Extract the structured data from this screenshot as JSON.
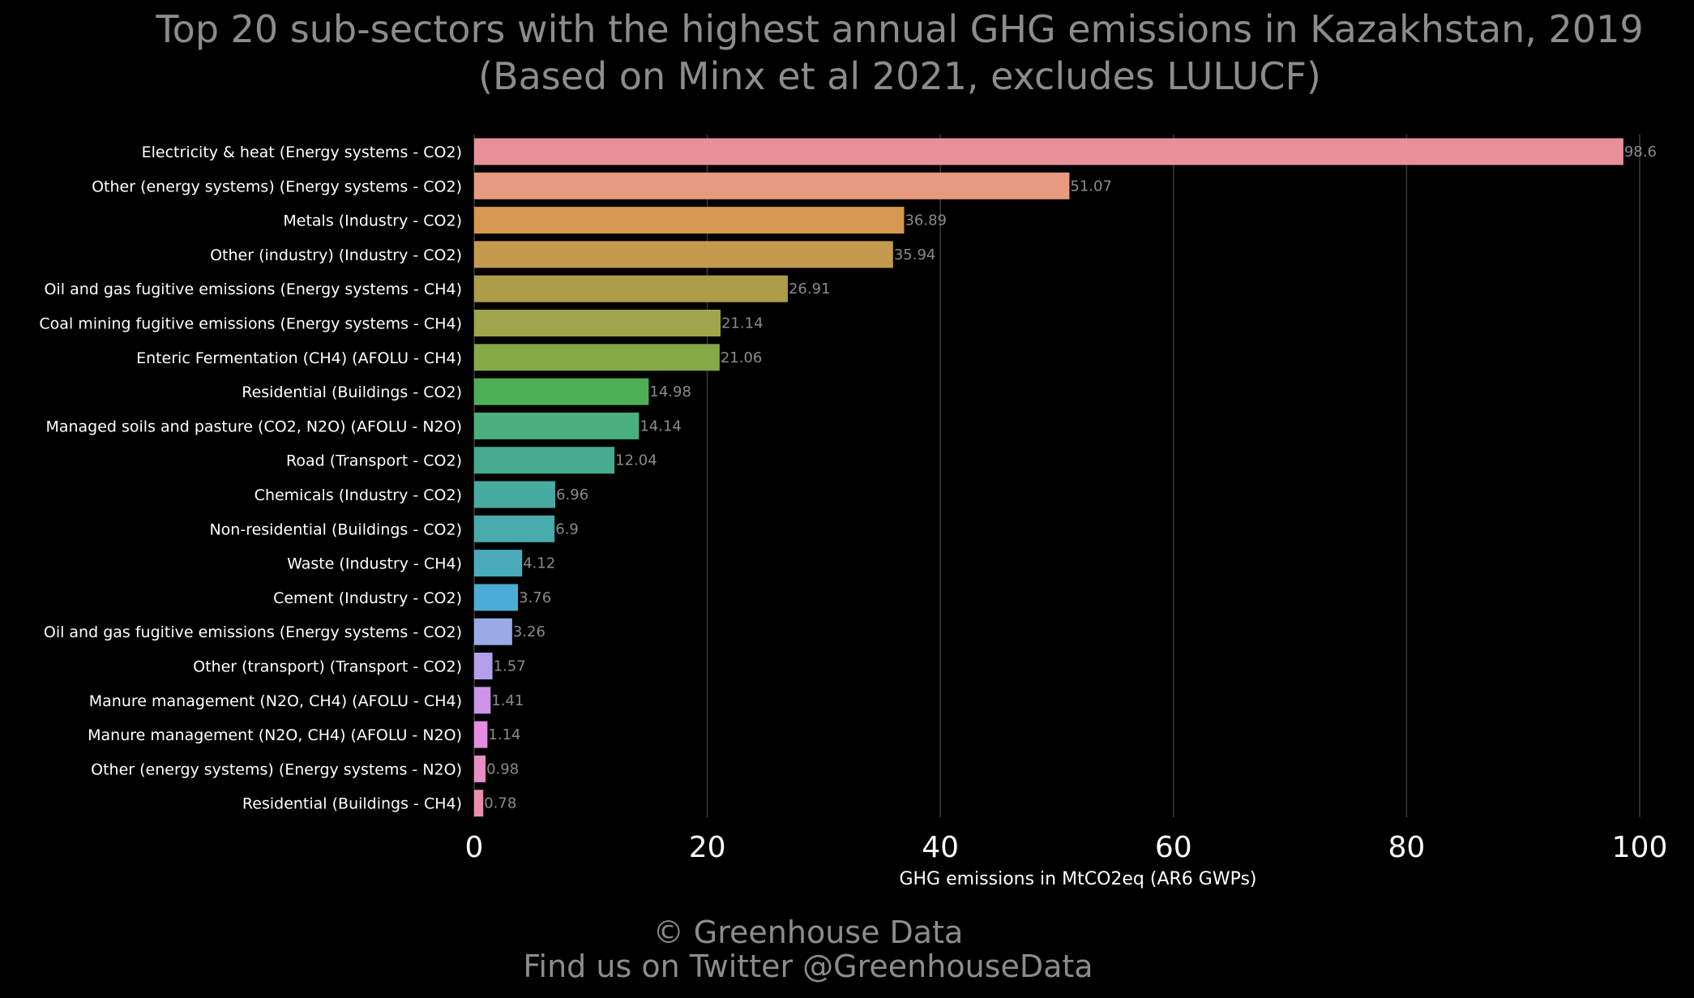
{
  "chart_data": {
    "type": "bar",
    "orientation": "horizontal",
    "title": "Top 20 sub-sectors with the highest annual GHG emissions in Kazakhstan, 2019",
    "subtitle": "(Based on Minx et al 2021, excludes LULUCF)",
    "xlabel": "GHG emissions in MtCO2eq (AR6 GWPs)",
    "ylabel": "",
    "xlim": [
      0,
      100
    ],
    "xticks": [
      0,
      20,
      40,
      60,
      80,
      100
    ],
    "grid": "vertical",
    "categories": [
      "Electricity & heat (Energy systems - CO2)",
      "Other (energy systems) (Energy systems - CO2)",
      "Metals (Industry - CO2)",
      "Other (industry) (Industry - CO2)",
      "Oil and gas fugitive emissions (Energy systems - CH4)",
      "Coal mining fugitive emissions (Energy systems - CH4)",
      "Enteric Fermentation (CH4) (AFOLU - CH4)",
      "Residential (Buildings - CO2)",
      "Managed soils and pasture (CO2, N2O) (AFOLU - N2O)",
      "Road (Transport - CO2)",
      "Chemicals (Industry - CO2)",
      "Non-residential (Buildings - CO2)",
      "Waste (Industry - CH4)",
      "Cement (Industry - CO2)",
      "Oil and gas fugitive emissions (Energy systems - CO2)",
      "Other (transport) (Transport - CO2)",
      "Manure management (N2O, CH4) (AFOLU - CH4)",
      "Manure management (N2O, CH4) (AFOLU - N2O)",
      "Other (energy systems) (Energy systems - N2O)",
      "Residential (Buildings - CH4)"
    ],
    "values": [
      98.6,
      51.07,
      36.89,
      35.94,
      26.91,
      21.14,
      21.06,
      14.98,
      14.14,
      12.04,
      6.96,
      6.9,
      4.12,
      3.76,
      3.26,
      1.57,
      1.41,
      1.14,
      0.98,
      0.78
    ],
    "value_labels": [
      "98.6",
      "51.07",
      "36.89",
      "35.94",
      "26.91",
      "21.14",
      "21.06",
      "14.98",
      "14.14",
      "12.04",
      "6.96",
      "6.9",
      "4.12",
      "3.76",
      "3.26",
      "1.57",
      "1.41",
      "1.14",
      "0.98",
      "0.78"
    ],
    "colors": [
      "#e8919b",
      "#e89a80",
      "#d4994f",
      "#c49a4f",
      "#ad9d48",
      "#9ea54a",
      "#86a948",
      "#4caf55",
      "#49af7d",
      "#45aa8e",
      "#47aba2",
      "#48abab",
      "#4aacbb",
      "#4badd6",
      "#9aaae6",
      "#b3a0ec",
      "#cc94e6",
      "#e48de0",
      "#ea8dc6",
      "#ec8daf"
    ]
  },
  "footer": {
    "line1": "© Greenhouse Data",
    "line2": "Find us on Twitter @GreenhouseData"
  }
}
